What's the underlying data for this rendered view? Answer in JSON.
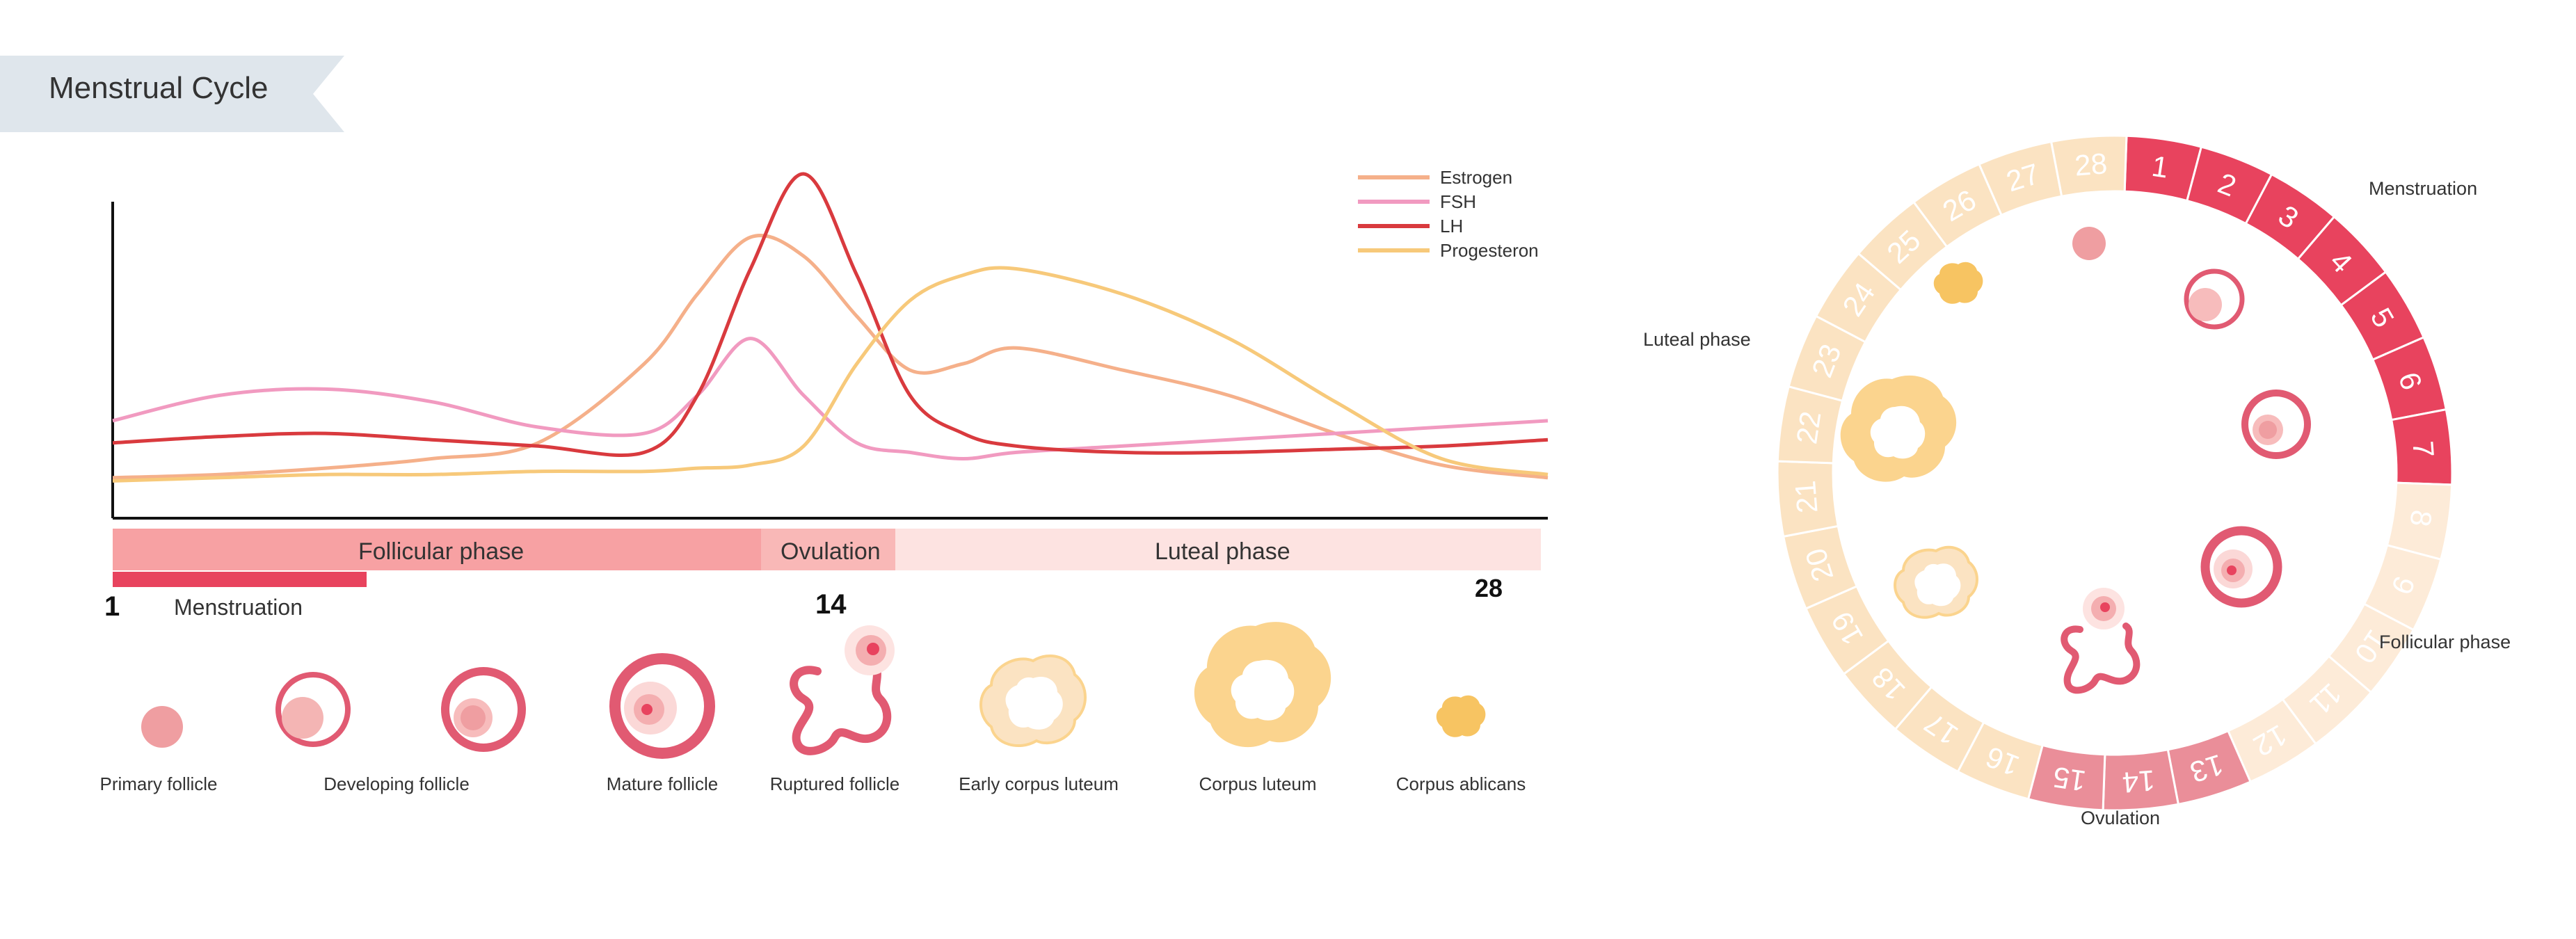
{
  "title": "Menstrual Cycle",
  "colors": {
    "estrogen": "#f5b08a",
    "fsh": "#f19ac0",
    "lh": "#d93a3e",
    "progesterone": "#f7c97a",
    "menstruation": "#e8435e",
    "follicular_bar": "#f7a1a3",
    "ovulation_bar": "#f9b8b7",
    "luteal_bar": "#fde3e1",
    "ring_pale": "#fbe3c2",
    "ring_follicular": "#fdebd8",
    "ovulation_ring": "#ea8e99",
    "follicle_pink": "#ef9ea1",
    "follicle_red": "#e15a72",
    "luteum_yellow": "#fbd48e"
  },
  "legend": [
    {
      "name": "Estrogen",
      "color_key": "estrogen"
    },
    {
      "name": "FSH",
      "color_key": "fsh"
    },
    {
      "name": "LH",
      "color_key": "lh"
    },
    {
      "name": "Progesteron",
      "color_key": "progesterone"
    }
  ],
  "phases": {
    "follicular": "Follicular phase",
    "ovulation": "Ovulation",
    "luteal": "Luteal phase",
    "menstruation": "Menstruation"
  },
  "day_markers": {
    "start": "1",
    "ovulation": "14",
    "end": "28"
  },
  "chart_data": {
    "type": "line",
    "x": [
      1,
      3,
      5,
      7,
      9,
      11,
      12,
      13,
      14,
      15,
      16,
      17,
      18,
      20,
      22,
      24,
      26,
      28
    ],
    "xlim": [
      1,
      28
    ],
    "series": [
      {
        "name": "Estrogen",
        "values": [
          4,
          5,
          7,
          10,
          15,
          40,
          62,
          80,
          74,
          55,
          38,
          40,
          45,
          38,
          30,
          18,
          8,
          4
        ]
      },
      {
        "name": "FSH",
        "values": [
          22,
          30,
          32,
          28,
          20,
          18,
          30,
          48,
          30,
          15,
          12,
          10,
          12,
          14,
          16,
          18,
          20,
          22
        ]
      },
      {
        "name": "LH",
        "values": [
          15,
          17,
          18,
          16,
          14,
          12,
          30,
          70,
          100,
          68,
          30,
          18,
          14,
          12,
          12,
          13,
          14,
          16
        ]
      },
      {
        "name": "Progesteron",
        "values": [
          3,
          4,
          5,
          5,
          6,
          6,
          7,
          8,
          14,
          40,
          60,
          68,
          70,
          62,
          48,
          28,
          10,
          5
        ]
      }
    ]
  },
  "follicles": [
    {
      "id": "primary",
      "label": "Primary follicle"
    },
    {
      "id": "developing1",
      "label": "Developing follicle"
    },
    {
      "id": "developing2",
      "label": ""
    },
    {
      "id": "mature",
      "label": "Mature follicle"
    },
    {
      "id": "ruptured",
      "label": "Ruptured follicle"
    },
    {
      "id": "early-luteum",
      "label": "Early corpus luteum"
    },
    {
      "id": "luteum",
      "label": "Corpus luteum"
    },
    {
      "id": "ablicans",
      "label": "Corpus ablicans"
    }
  ],
  "cycle": {
    "days": [
      "1",
      "2",
      "3",
      "4",
      "5",
      "6",
      "7",
      "8",
      "9",
      "10",
      "11",
      "12",
      "13",
      "14",
      "15",
      "16",
      "17",
      "18",
      "19",
      "20",
      "21",
      "22",
      "23",
      "24",
      "25",
      "26",
      "27",
      "28"
    ],
    "labels": {
      "menstruation": "Menstruation",
      "follicular": "Follicular phase",
      "ovulation": "Ovulation",
      "luteal": "Luteal phase"
    }
  }
}
